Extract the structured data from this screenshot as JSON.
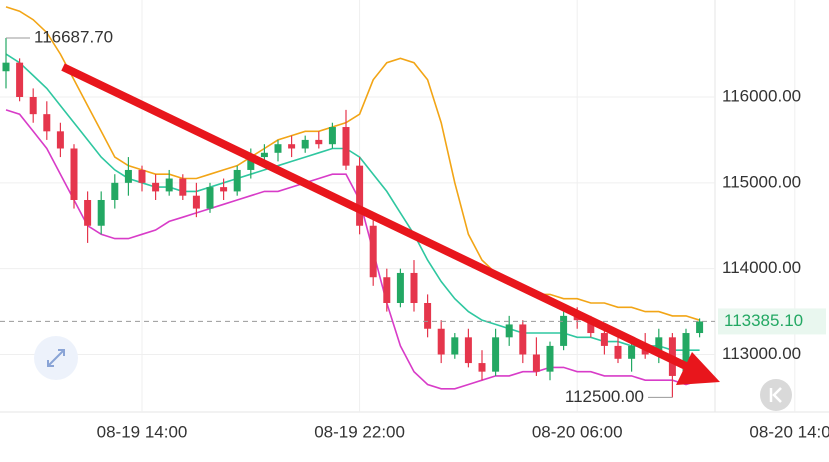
{
  "chart_data": {
    "type": "candlestick",
    "categories": [
      null,
      null,
      null,
      null,
      null,
      null,
      null,
      null,
      null,
      null,
      "08-19 14:00",
      null,
      null,
      null,
      null,
      null,
      null,
      null,
      null,
      null,
      null,
      null,
      null,
      null,
      null,
      null,
      "08-19 22:00",
      null,
      null,
      null,
      null,
      null,
      null,
      null,
      null,
      null,
      null,
      null,
      null,
      null,
      null,
      null,
      "08-20 06:00",
      null,
      null,
      null,
      null,
      null,
      null,
      null,
      null,
      null,
      null,
      null,
      null,
      null,
      null,
      null,
      "08-20 14:00"
    ],
    "open": [
      116300,
      116400,
      116000,
      115800,
      115600,
      115400,
      114800,
      114500,
      114800,
      115000,
      115150,
      115000,
      114900,
      115050,
      114850,
      114700,
      114950,
      114900,
      115150,
      115300,
      115350,
      115450,
      115400,
      115500,
      115450,
      115650,
      115200,
      114500,
      113900,
      113600,
      113950,
      113600,
      113300,
      113000,
      113200,
      112900,
      112800,
      113200,
      113350,
      113000,
      112800,
      113100,
      113450,
      113400,
      113250,
      113100,
      112950,
      113100,
      113000,
      113200,
      112750,
      113250,
      null,
      null,
      null,
      null,
      null,
      null,
      null
    ],
    "high": [
      116687.7,
      116450,
      116100,
      115950,
      115700,
      115450,
      114900,
      114900,
      115100,
      115300,
      115200,
      115100,
      115150,
      115100,
      115000,
      115000,
      115050,
      115200,
      115400,
      115450,
      115500,
      115550,
      115550,
      115600,
      115700,
      115850,
      115300,
      114600,
      114000,
      114000,
      114100,
      113700,
      113400,
      113250,
      113300,
      113050,
      113300,
      113450,
      113400,
      113200,
      113150,
      113500,
      113550,
      113450,
      113300,
      113200,
      113150,
      113250,
      113300,
      113250,
      113300,
      113420,
      null,
      null,
      null,
      null,
      null,
      null,
      null
    ],
    "low": [
      116100,
      115950,
      115700,
      115500,
      115300,
      114700,
      114300,
      114400,
      114700,
      114850,
      114900,
      114800,
      114850,
      114800,
      114600,
      114650,
      114800,
      114850,
      115050,
      115200,
      115250,
      115300,
      115350,
      115400,
      115400,
      115150,
      114400,
      113800,
      113500,
      113550,
      113500,
      113200,
      112900,
      112950,
      112850,
      112700,
      112750,
      113100,
      112900,
      112750,
      112700,
      113050,
      113300,
      113200,
      113000,
      112900,
      112800,
      112950,
      112900,
      112500,
      112700,
      113200,
      null,
      null,
      null,
      null,
      null,
      null,
      null
    ],
    "close": [
      116400,
      116000,
      115800,
      115600,
      115400,
      114800,
      114500,
      114800,
      115000,
      115150,
      115000,
      114900,
      115050,
      114850,
      114700,
      114950,
      114900,
      115150,
      115300,
      115350,
      115450,
      115400,
      115500,
      115450,
      115650,
      115200,
      114500,
      113900,
      113600,
      113950,
      113600,
      113300,
      113000,
      113200,
      112900,
      112800,
      113200,
      113350,
      113000,
      112800,
      113100,
      113450,
      113400,
      113250,
      113100,
      112950,
      113100,
      113000,
      113200,
      112750,
      113250,
      113385.1,
      null,
      null,
      null,
      null,
      null,
      null,
      null
    ],
    "up_color": "#23a863",
    "down_color": "#e5364c",
    "series": [
      {
        "color": "#f2a516",
        "values": [
          117050,
          117000,
          116900,
          116750,
          116500,
          116200,
          115900,
          115600,
          115300,
          115200,
          115150,
          115100,
          115100,
          115050,
          115050,
          115100,
          115150,
          115200,
          115300,
          115400,
          115500,
          115550,
          115600,
          115600,
          115650,
          115700,
          115800,
          116200,
          116400,
          116450,
          116400,
          116200,
          115700,
          115000,
          114400,
          114100,
          113950,
          113850,
          113750,
          113700,
          113700,
          113650,
          113650,
          113600,
          113600,
          113550,
          113550,
          113500,
          113500,
          113450,
          113450,
          113400,
          null,
          null,
          null,
          null,
          null,
          null,
          null
        ]
      },
      {
        "color": "#2fc7a0",
        "values": [
          116500,
          116400,
          116250,
          116100,
          115900,
          115700,
          115500,
          115300,
          115150,
          115050,
          115000,
          114950,
          114950,
          114900,
          114900,
          114950,
          115000,
          115050,
          115100,
          115150,
          115200,
          115250,
          115300,
          115350,
          115400,
          115400,
          115300,
          115100,
          114900,
          114650,
          114400,
          114100,
          113850,
          113650,
          113500,
          113400,
          113350,
          113300,
          113250,
          113250,
          113250,
          113250,
          113200,
          113200,
          113150,
          113150,
          113100,
          113100,
          113100,
          113050,
          113050,
          113050,
          null,
          null,
          null,
          null,
          null,
          null,
          null
        ]
      },
      {
        "color": "#d83cc8",
        "values": [
          115850,
          115800,
          115600,
          115400,
          115100,
          114800,
          114500,
          114400,
          114350,
          114350,
          114400,
          114450,
          114550,
          114600,
          114650,
          114700,
          114750,
          114800,
          114850,
          114900,
          114900,
          114950,
          115000,
          115050,
          115100,
          115100,
          114800,
          114200,
          113600,
          113100,
          112800,
          112650,
          112600,
          112600,
          112650,
          112700,
          112750,
          112750,
          112800,
          112800,
          112850,
          112850,
          112800,
          112800,
          112750,
          112750,
          112750,
          112700,
          112700,
          112700,
          112650,
          112700,
          null,
          null,
          null,
          null,
          null,
          null,
          null
        ]
      }
    ],
    "ylim": [
      112330,
      117130
    ],
    "yticks": [
      {
        "value": 113000,
        "label": "113000.00"
      },
      {
        "value": 114000,
        "label": "114000.00"
      },
      {
        "value": 115000,
        "label": "115000.00"
      },
      {
        "value": 116000,
        "label": "116000.00"
      }
    ],
    "grid": true,
    "high_label": {
      "value": 116687.7,
      "label": "116687.70"
    },
    "low_label": {
      "value": 112500,
      "label": "112500.00"
    },
    "last_price": {
      "value": 113385.1,
      "label": "113385.10"
    }
  }
}
